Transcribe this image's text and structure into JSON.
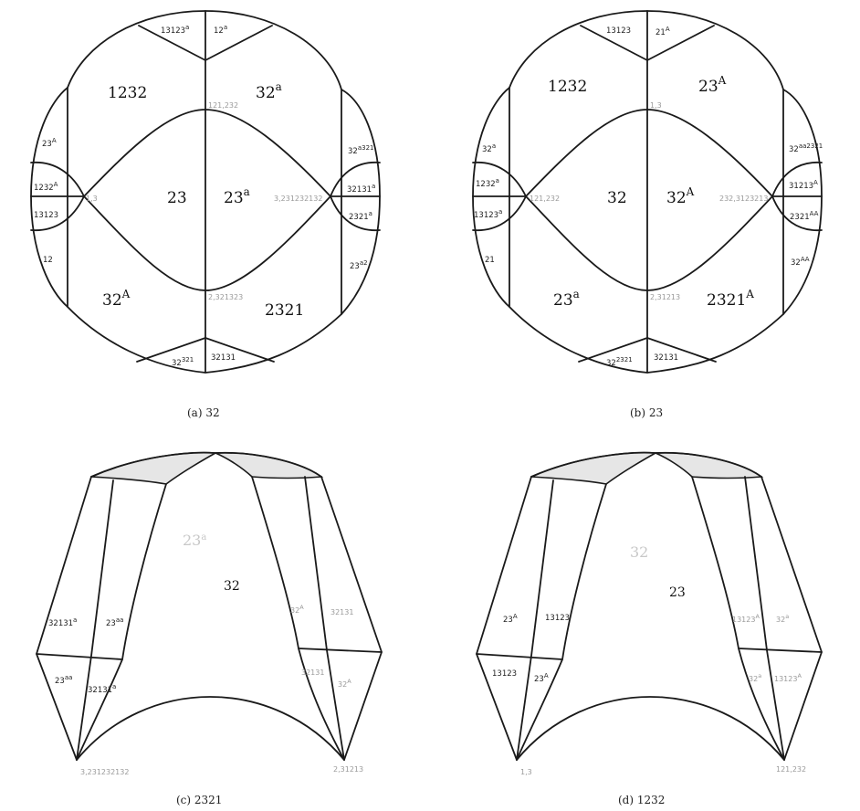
{
  "panels": [
    {
      "id": "a",
      "caption": "(a) 32",
      "regions": {
        "top_left": "13123",
        "top_left_sup": "a",
        "top_right": "12",
        "top_right_sup": "a",
        "upper_left": "1232",
        "upper_right": "32",
        "upper_right_sup": "a",
        "center_left": "23",
        "center_right": "23",
        "center_right_sup": "a",
        "lower_left": "32",
        "lower_left_sup": "A",
        "lower_right": "2321",
        "bottom_left": "32",
        "bottom_left_sup": "321",
        "bottom_right": "32131",
        "left_1": "23",
        "left_1_sup": "A",
        "left_2": "1232",
        "left_2_sup": "A",
        "left_3": "13123",
        "left_4": "12",
        "right_1": "32",
        "right_1_sup": "a321",
        "right_2": "32131",
        "right_2_sup": "a",
        "right_3": "2321",
        "right_3_sup": "a",
        "right_4": "23",
        "right_4_sup": "a2"
      },
      "vertices": {
        "top": "121,232",
        "left": "1,3",
        "right": "3,231232132",
        "bottom": "2,321323"
      }
    },
    {
      "id": "b",
      "caption": "(b) 23",
      "regions": {
        "top_left": "13123",
        "top_right": "21",
        "top_right_sup": "A",
        "upper_left": "1232",
        "upper_right": "23",
        "upper_right_sup": "A",
        "center_left": "32",
        "center_right": "32",
        "center_right_sup": "A",
        "lower_left": "23",
        "lower_left_sup": "a",
        "lower_right": "2321",
        "lower_right_sup": "A",
        "bottom_left": "32",
        "bottom_left_sup": "2321",
        "bottom_right": "32131",
        "left_1": "32",
        "left_1_sup": "a",
        "left_2": "1232",
        "left_2_sup": "a",
        "left_3": "13123",
        "left_3_sup": "a",
        "left_4": "21",
        "right_1": "32",
        "right_1_sup": "aa2321",
        "right_2": "31213",
        "right_2_sup": "A",
        "right_3": "2321",
        "right_3_sup": "AA",
        "right_4": "32",
        "right_4_sup": "AA"
      },
      "vertices": {
        "top": "1,3",
        "left": "121,232",
        "right": "232,3123213",
        "bottom": "2,31213"
      }
    },
    {
      "id": "c",
      "caption": "(c) 2321",
      "regions": {
        "back": "23",
        "back_sup": "a",
        "front": "32",
        "l_upper_left": "32131",
        "l_upper_left_sup": "a",
        "l_upper_right": "23",
        "l_upper_right_sup": "aa",
        "l_lower_left": "23",
        "l_lower_left_sup": "aa",
        "l_lower_right": "32131",
        "l_lower_right_sup": "a",
        "r_upper_left": "32",
        "r_upper_left_sup": "A",
        "r_upper_right": "32131",
        "r_lower_left": "32131",
        "r_lower_right": "32",
        "r_lower_right_sup": "A"
      },
      "vertices": {
        "left": "3,231232132",
        "right": "2,31213"
      }
    },
    {
      "id": "d",
      "caption": "(d) 1232",
      "regions": {
        "back": "32",
        "front": "23",
        "l_upper_left": "23",
        "l_upper_left_sup": "A",
        "l_upper_right": "13123",
        "l_lower_left": "13123",
        "l_lower_right": "23",
        "l_lower_right_sup": "A",
        "r_upper_left": "13123",
        "r_upper_left_sup": "A",
        "r_upper_right": "32",
        "r_upper_right_sup": "a",
        "r_lower_left": "32",
        "r_lower_left_sup": "a",
        "r_lower_right": "13123",
        "r_lower_right_sup": "A"
      },
      "vertices": {
        "left": "1,3",
        "right": "121,232"
      }
    }
  ]
}
